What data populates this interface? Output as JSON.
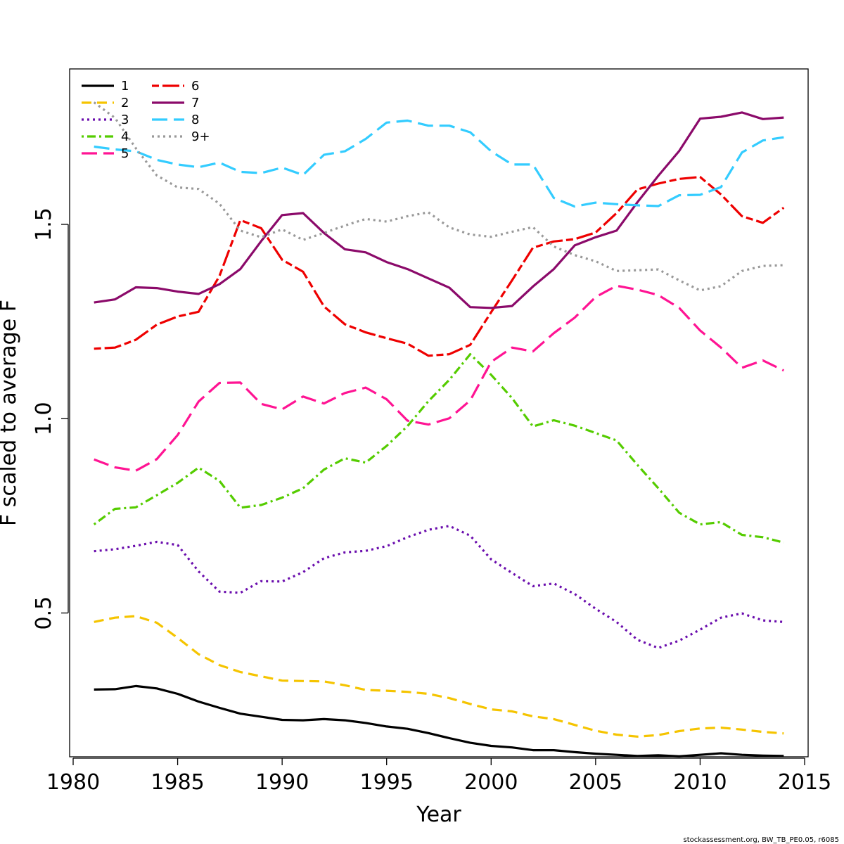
{
  "chart_data": {
    "type": "line",
    "xlabel": "Year",
    "ylabel": "F scaled to average F",
    "xlim": [
      1980,
      2015
    ],
    "ylim": [
      0.13,
      1.9
    ],
    "x_ticks": [
      1980,
      1985,
      1990,
      1995,
      2000,
      2005,
      2010,
      2015
    ],
    "y_ticks": [
      0.5,
      1.0,
      1.5
    ],
    "y_tick_labels": [
      "0.5",
      "1.0",
      "1.5"
    ],
    "grid": false,
    "legend_position": "top-left",
    "x": [
      1981,
      1982,
      1983,
      1984,
      1985,
      1986,
      1987,
      1988,
      1989,
      1990,
      1991,
      1992,
      1993,
      1994,
      1995,
      1996,
      1997,
      1998,
      1999,
      2000,
      2001,
      2002,
      2003,
      2004,
      2005,
      2006,
      2007,
      2008,
      2009,
      2010,
      2011,
      2012,
      2013,
      2014
    ],
    "series": [
      {
        "name": "1",
        "color": "#000000",
        "dash": "solid",
        "values": [
          0.303,
          0.304,
          0.312,
          0.306,
          0.292,
          0.272,
          0.256,
          0.241,
          0.233,
          0.225,
          0.224,
          0.227,
          0.224,
          0.217,
          0.208,
          0.202,
          0.191,
          0.178,
          0.166,
          0.158,
          0.154,
          0.147,
          0.147,
          0.142,
          0.138,
          0.135,
          0.132,
          0.134,
          0.131,
          0.135,
          0.139,
          0.135,
          0.133,
          0.132
        ]
      },
      {
        "name": "2",
        "color": "#f5c400",
        "dash": "dashed",
        "values": [
          0.477,
          0.488,
          0.492,
          0.475,
          0.436,
          0.394,
          0.366,
          0.348,
          0.337,
          0.326,
          0.325,
          0.324,
          0.314,
          0.302,
          0.3,
          0.297,
          0.292,
          0.281,
          0.266,
          0.252,
          0.247,
          0.234,
          0.227,
          0.212,
          0.197,
          0.187,
          0.182,
          0.186,
          0.196,
          0.203,
          0.205,
          0.2,
          0.194,
          0.19
        ]
      },
      {
        "name": "3",
        "color": "#6a0dad",
        "dash": "dotted",
        "values": [
          0.659,
          0.664,
          0.673,
          0.683,
          0.675,
          0.607,
          0.555,
          0.552,
          0.582,
          0.581,
          0.605,
          0.641,
          0.656,
          0.66,
          0.672,
          0.695,
          0.714,
          0.724,
          0.699,
          0.638,
          0.603,
          0.569,
          0.576,
          0.549,
          0.511,
          0.477,
          0.431,
          0.41,
          0.429,
          0.457,
          0.488,
          0.499,
          0.481,
          0.477
        ]
      },
      {
        "name": "4",
        "color": "#55cc00",
        "dash": "dashdot",
        "values": [
          0.728,
          0.768,
          0.772,
          0.803,
          0.835,
          0.874,
          0.84,
          0.771,
          0.778,
          0.797,
          0.821,
          0.869,
          0.898,
          0.887,
          0.93,
          0.981,
          1.045,
          1.1,
          1.166,
          1.113,
          1.053,
          0.98,
          0.996,
          0.982,
          0.963,
          0.944,
          0.881,
          0.821,
          0.758,
          0.728,
          0.734,
          0.701,
          0.695,
          0.681
        ]
      },
      {
        "name": "5",
        "color": "#ff1493",
        "dash": "longdash",
        "values": [
          0.895,
          0.875,
          0.866,
          0.896,
          0.958,
          1.044,
          1.092,
          1.093,
          1.038,
          1.024,
          1.057,
          1.039,
          1.066,
          1.08,
          1.05,
          0.995,
          0.985,
          1.001,
          1.047,
          1.146,
          1.183,
          1.173,
          1.22,
          1.26,
          1.313,
          1.342,
          1.332,
          1.318,
          1.285,
          1.227,
          1.183,
          1.131,
          1.15,
          1.124
        ]
      },
      {
        "name": "6",
        "color": "#ee0000",
        "dash": "twodash",
        "values": [
          1.18,
          1.183,
          1.203,
          1.242,
          1.263,
          1.275,
          1.367,
          1.511,
          1.49,
          1.409,
          1.378,
          1.289,
          1.243,
          1.222,
          1.207,
          1.193,
          1.162,
          1.166,
          1.19,
          1.274,
          1.356,
          1.44,
          1.456,
          1.462,
          1.479,
          1.529,
          1.59,
          1.605,
          1.617,
          1.622,
          1.577,
          1.521,
          1.504,
          1.543
        ]
      },
      {
        "name": "7",
        "color": "#8b0a6a",
        "dash": "solid",
        "values": [
          1.299,
          1.307,
          1.338,
          1.336,
          1.327,
          1.321,
          1.346,
          1.385,
          1.457,
          1.524,
          1.529,
          1.478,
          1.436,
          1.428,
          1.403,
          1.385,
          1.361,
          1.337,
          1.287,
          1.285,
          1.29,
          1.34,
          1.385,
          1.446,
          1.467,
          1.484,
          1.557,
          1.625,
          1.689,
          1.772,
          1.777,
          1.788,
          1.771,
          1.775
        ]
      },
      {
        "name": "8",
        "color": "#33ccff",
        "dash": "longdash",
        "values": [
          1.7,
          1.693,
          1.688,
          1.666,
          1.654,
          1.647,
          1.659,
          1.635,
          1.632,
          1.646,
          1.627,
          1.679,
          1.688,
          1.72,
          1.762,
          1.767,
          1.754,
          1.754,
          1.737,
          1.688,
          1.654,
          1.654,
          1.568,
          1.546,
          1.556,
          1.552,
          1.549,
          1.547,
          1.575,
          1.576,
          1.596,
          1.685,
          1.716,
          1.724
        ]
      },
      {
        "name": "9+",
        "color": "#999999",
        "dash": "dotted",
        "values": [
          1.814,
          1.774,
          1.696,
          1.626,
          1.595,
          1.591,
          1.553,
          1.484,
          1.467,
          1.487,
          1.46,
          1.478,
          1.497,
          1.514,
          1.507,
          1.521,
          1.531,
          1.492,
          1.474,
          1.468,
          1.481,
          1.493,
          1.443,
          1.421,
          1.405,
          1.38,
          1.382,
          1.384,
          1.356,
          1.33,
          1.341,
          1.38,
          1.393,
          1.395
        ]
      }
    ],
    "credit": "stockassessment.org, BW_TB_PE0.05, r6085"
  }
}
